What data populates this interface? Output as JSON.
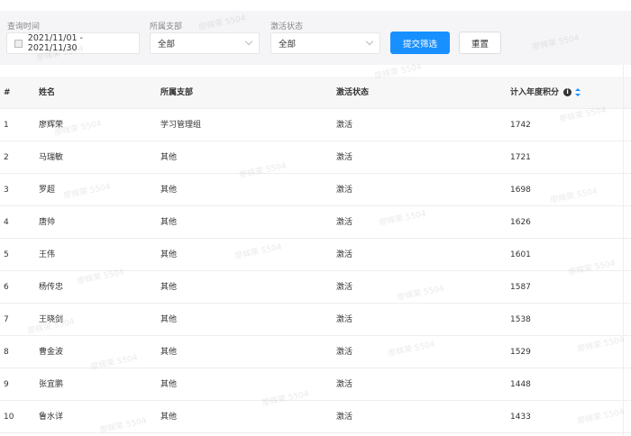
{
  "filters": {
    "date": {
      "label": "查询时间",
      "value": "2021/11/01 - 2021/11/30"
    },
    "branch": {
      "label": "所属支部",
      "value": "全部"
    },
    "status": {
      "label": "激活状态",
      "value": "全部"
    },
    "submit_label": "提交筛选",
    "reset_label": "重置"
  },
  "table": {
    "columns": [
      "#",
      "姓名",
      "所属支部",
      "激活状态",
      "计入年度积分"
    ],
    "rows": [
      [
        "1",
        "廖辉荣",
        "学习管理组",
        "激活",
        "1742"
      ],
      [
        "2",
        "马瑞敏",
        "其他",
        "激活",
        "1721"
      ],
      [
        "3",
        "罗超",
        "其他",
        "激活",
        "1698"
      ],
      [
        "4",
        "唐帅",
        "其他",
        "激活",
        "1626"
      ],
      [
        "5",
        "王伟",
        "其他",
        "激活",
        "1601"
      ],
      [
        "6",
        "杨传忠",
        "其他",
        "激活",
        "1587"
      ],
      [
        "7",
        "王晓剑",
        "其他",
        "激活",
        "1538"
      ],
      [
        "8",
        "曹金波",
        "其他",
        "激活",
        "1529"
      ],
      [
        "9",
        "张宜鹏",
        "其他",
        "激活",
        "1448"
      ],
      [
        "10",
        "鲁水详",
        "其他",
        "激活",
        "1433"
      ]
    ]
  },
  "watermark": "廖辉荣 5504",
  "colors": {
    "primary": "#1890ff",
    "filter_bg": "#f5f5f7"
  }
}
